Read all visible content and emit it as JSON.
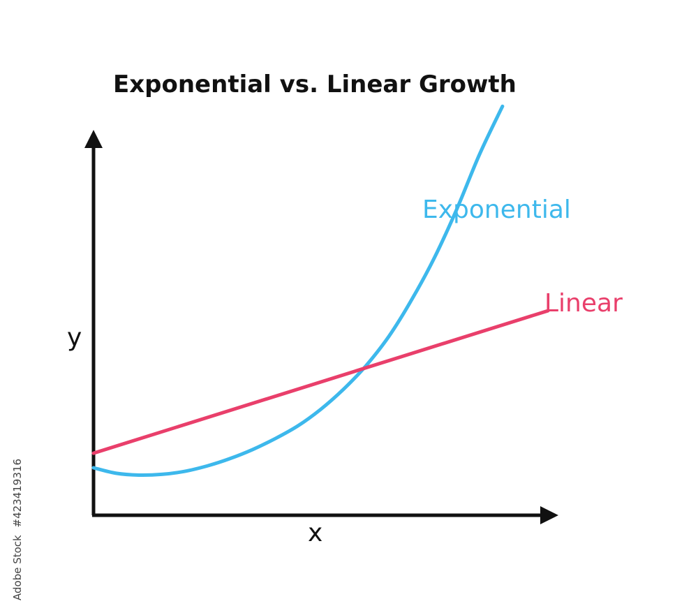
{
  "chart_data": {
    "type": "line",
    "title": "Exponential vs. Linear Growth",
    "xlabel": "x",
    "ylabel": "y",
    "xlim": [
      0,
      10
    ],
    "ylim": [
      0,
      10
    ],
    "x": [
      0,
      0.5,
      1,
      1.5,
      2,
      2.5,
      3,
      3.5,
      4,
      4.5,
      5,
      5.5,
      6,
      6.5,
      7,
      7.5,
      8,
      8.5,
      9,
      9.5,
      10
    ],
    "series": [
      {
        "name": "Exponential",
        "color": "#3db8ec",
        "x": [
          0,
          0.5,
          1,
          1.5,
          2,
          2.5,
          3,
          3.5,
          4,
          4.5,
          5,
          5.5,
          6,
          6.5,
          7,
          7.5,
          8,
          8.5,
          9
        ],
        "values": [
          1.3,
          1.15,
          1.1,
          1.12,
          1.2,
          1.35,
          1.55,
          1.8,
          2.1,
          2.45,
          2.9,
          3.45,
          4.1,
          4.9,
          5.9,
          7.05,
          8.4,
          9.9,
          11.2
        ]
      },
      {
        "name": "Linear",
        "color": "#e93f6b",
        "x": [
          0,
          10
        ],
        "values": [
          1.7,
          5.6
        ]
      }
    ],
    "grid": false,
    "legend": "inline labels at line ends"
  },
  "watermark": "423419316",
  "watermark_brand": "Adobe Stock"
}
